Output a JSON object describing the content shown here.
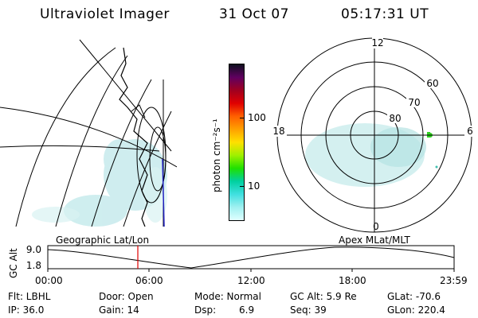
{
  "header": {
    "instrument": "Ultraviolet Imager",
    "date": "31 Oct 07",
    "time": "05:17:31 UT"
  },
  "colorbar": {
    "label": "photon cm⁻²s⁻¹",
    "ticks": [
      "100",
      "10"
    ],
    "colors": [
      "#101020",
      "#600060",
      "#a00020",
      "#e00000",
      "#ff6000",
      "#ffa000",
      "#ffe000",
      "#a0f000",
      "#20e000",
      "#00d0a0",
      "#40e0e0",
      "#a0f0f0",
      "#e0ffff"
    ]
  },
  "polar": {
    "mlt_labels": [
      "12",
      "18",
      "6",
      "0"
    ],
    "lat_labels": [
      "60",
      "70",
      "80"
    ]
  },
  "altplot": {
    "ylabel": "GC Alt",
    "yticks": [
      "9.0",
      "1.8"
    ],
    "left_title": "Geographic Lat/Lon",
    "right_title": "Apex MLat/MLT",
    "xticks": [
      "00:00",
      "06:00",
      "12:00",
      "18:00",
      "23:59"
    ]
  },
  "info": {
    "filter": "Flt: LBHL",
    "door": "Door: Open",
    "mode": "Mode: Normal",
    "gc_alt": "GC Alt: 5.9 Re",
    "glat": "GLat: -70.6",
    "ip": "IP: 36.0",
    "gain": "Gain: 14",
    "dsp_label": "Dsp:",
    "dsp_value": "6.9",
    "seq": "Seq: 39",
    "glon": "GLon: 220.4"
  }
}
